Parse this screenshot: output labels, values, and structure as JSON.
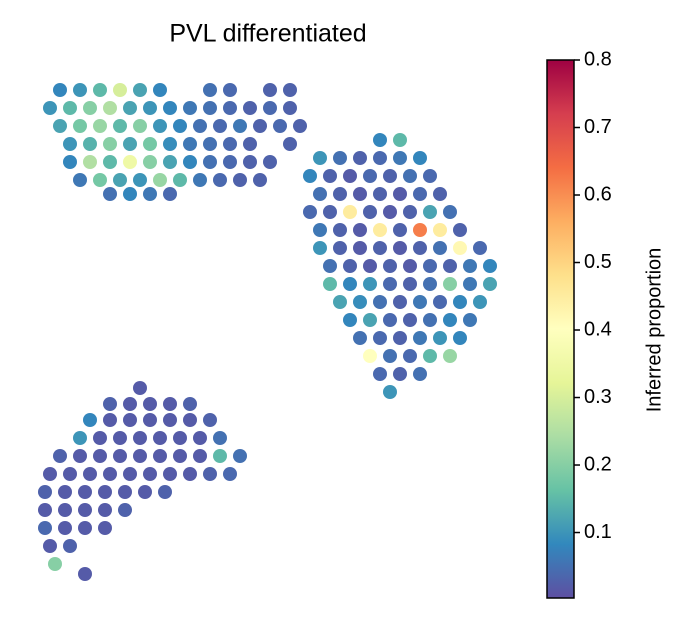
{
  "chart_data": {
    "type": "scatter",
    "title": "PVL differentiated",
    "colorbar_label": "Inferred proportion",
    "clim": [
      0.003,
      0.8
    ],
    "cticks": [
      0.1,
      0.2,
      0.3,
      0.4,
      0.5,
      0.6,
      0.7,
      0.8
    ],
    "colormap": [
      "#5e4fa2",
      "#3288bd",
      "#66c2a5",
      "#abdda4",
      "#e6f598",
      "#ffffbf",
      "#fee08b",
      "#fdae61",
      "#f46d43",
      "#d53e4f",
      "#9e0142"
    ],
    "y_inverted": true,
    "xlim": [
      30,
      510
    ],
    "ylim": [
      70,
      590
    ],
    "x": [
      60,
      80,
      100,
      120,
      140,
      160,
      210,
      230,
      270,
      290,
      50,
      70,
      90,
      110,
      130,
      150,
      170,
      190,
      210,
      230,
      250,
      270,
      290,
      60,
      80,
      100,
      120,
      140,
      160,
      180,
      200,
      220,
      240,
      260,
      280,
      300,
      70,
      90,
      110,
      130,
      150,
      170,
      190,
      210,
      230,
      250,
      290,
      70,
      90,
      110,
      130,
      150,
      170,
      190,
      210,
      230,
      250,
      270,
      80,
      100,
      120,
      140,
      160,
      180,
      200,
      220,
      240,
      260,
      110,
      130,
      150,
      170,
      380,
      400,
      320,
      340,
      360,
      380,
      400,
      420,
      310,
      330,
      350,
      370,
      390,
      410,
      430,
      320,
      340,
      360,
      380,
      400,
      420,
      440,
      310,
      330,
      350,
      370,
      390,
      410,
      430,
      450,
      320,
      340,
      360,
      380,
      400,
      420,
      440,
      460,
      320,
      340,
      360,
      380,
      400,
      420,
      440,
      460,
      480,
      330,
      350,
      370,
      390,
      410,
      430,
      450,
      470,
      490,
      330,
      350,
      370,
      390,
      410,
      430,
      450,
      470,
      490,
      340,
      360,
      380,
      400,
      420,
      440,
      460,
      480,
      350,
      370,
      390,
      410,
      430,
      450,
      470,
      360,
      380,
      400,
      420,
      440,
      460,
      370,
      390,
      410,
      430,
      450,
      380,
      400,
      420,
      390,
      140,
      110,
      130,
      150,
      170,
      190,
      90,
      110,
      130,
      150,
      170,
      190,
      210,
      80,
      100,
      120,
      140,
      160,
      180,
      200,
      220,
      60,
      80,
      100,
      120,
      140,
      160,
      180,
      200,
      220,
      240,
      50,
      70,
      90,
      110,
      130,
      150,
      170,
      190,
      210,
      230,
      45,
      65,
      85,
      105,
      125,
      145,
      165,
      45,
      65,
      85,
      105,
      125,
      45,
      65,
      85,
      105,
      50,
      70,
      55,
      85
    ],
    "y": [
      90,
      90,
      90,
      90,
      90,
      90,
      90,
      90,
      90,
      90,
      108,
      108,
      108,
      108,
      108,
      108,
      108,
      108,
      108,
      108,
      108,
      108,
      108,
      126,
      126,
      126,
      126,
      126,
      126,
      126,
      126,
      126,
      126,
      126,
      126,
      126,
      144,
      144,
      144,
      144,
      144,
      144,
      144,
      144,
      144,
      144,
      144,
      162,
      162,
      162,
      162,
      162,
      162,
      162,
      162,
      162,
      162,
      162,
      180,
      180,
      180,
      180,
      180,
      180,
      180,
      180,
      180,
      180,
      194,
      194,
      194,
      194,
      140,
      140,
      158,
      158,
      158,
      158,
      158,
      158,
      176,
      176,
      176,
      176,
      176,
      176,
      176,
      194,
      194,
      194,
      194,
      194,
      194,
      194,
      212,
      212,
      212,
      212,
      212,
      212,
      212,
      212,
      230,
      230,
      230,
      230,
      230,
      230,
      230,
      230,
      248,
      248,
      248,
      248,
      248,
      248,
      248,
      248,
      248,
      266,
      266,
      266,
      266,
      266,
      266,
      266,
      266,
      266,
      284,
      284,
      284,
      284,
      284,
      284,
      284,
      284,
      284,
      302,
      302,
      302,
      302,
      302,
      302,
      302,
      302,
      320,
      320,
      320,
      320,
      320,
      320,
      320,
      338,
      338,
      338,
      338,
      338,
      338,
      356,
      356,
      356,
      356,
      356,
      374,
      374,
      374,
      392,
      388,
      404,
      404,
      404,
      404,
      404,
      420,
      420,
      420,
      420,
      420,
      420,
      420,
      438,
      438,
      438,
      438,
      438,
      438,
      438,
      438,
      456,
      456,
      456,
      456,
      456,
      456,
      456,
      456,
      456,
      456,
      474,
      474,
      474,
      474,
      474,
      474,
      474,
      474,
      474,
      474,
      492,
      492,
      492,
      492,
      492,
      492,
      492,
      510,
      510,
      510,
      510,
      510,
      528,
      528,
      528,
      528,
      546,
      546,
      564,
      574
    ],
    "values": [
      0.08,
      0.1,
      0.15,
      0.3,
      0.12,
      0.08,
      0.05,
      0.04,
      0.03,
      0.03,
      0.1,
      0.15,
      0.2,
      0.25,
      0.12,
      0.1,
      0.08,
      0.06,
      0.05,
      0.04,
      0.03,
      0.04,
      0.03,
      0.12,
      0.18,
      0.22,
      0.15,
      0.2,
      0.1,
      0.08,
      0.05,
      0.04,
      0.06,
      0.03,
      0.04,
      0.03,
      0.1,
      0.14,
      0.2,
      0.12,
      0.18,
      0.09,
      0.06,
      0.05,
      0.04,
      0.03,
      0.03,
      0.08,
      0.25,
      0.15,
      0.35,
      0.2,
      0.12,
      0.08,
      0.05,
      0.04,
      0.03,
      0.03,
      0.06,
      0.18,
      0.12,
      0.1,
      0.22,
      0.15,
      0.06,
      0.04,
      0.03,
      0.03,
      0.05,
      0.08,
      0.06,
      0.04,
      0.08,
      0.15,
      0.1,
      0.05,
      0.03,
      0.04,
      0.06,
      0.08,
      0.08,
      0.03,
      0.02,
      0.04,
      0.03,
      0.05,
      0.04,
      0.05,
      0.03,
      0.02,
      0.03,
      0.02,
      0.04,
      0.03,
      0.04,
      0.03,
      0.45,
      0.03,
      0.02,
      0.03,
      0.12,
      0.05,
      0.06,
      0.03,
      0.02,
      0.45,
      0.03,
      0.62,
      0.45,
      0.03,
      0.1,
      0.03,
      0.02,
      0.03,
      0.02,
      0.03,
      0.05,
      0.42,
      0.04,
      0.05,
      0.03,
      0.02,
      0.03,
      0.02,
      0.04,
      0.03,
      0.06,
      0.08,
      0.15,
      0.08,
      0.1,
      0.04,
      0.03,
      0.05,
      0.2,
      0.06,
      0.12,
      0.12,
      0.09,
      0.05,
      0.03,
      0.06,
      0.04,
      0.08,
      0.1,
      0.08,
      0.12,
      0.04,
      0.03,
      0.05,
      0.08,
      0.06,
      0.05,
      0.04,
      0.03,
      0.06,
      0.1,
      0.08,
      0.4,
      0.05,
      0.04,
      0.15,
      0.22,
      0.04,
      0.03,
      0.05,
      0.1,
      0.02,
      0.03,
      0.02,
      0.02,
      0.02,
      0.03,
      0.08,
      0.02,
      0.02,
      0.02,
      0.02,
      0.02,
      0.03,
      0.1,
      0.02,
      0.02,
      0.02,
      0.02,
      0.02,
      0.02,
      0.05,
      0.03,
      0.02,
      0.02,
      0.02,
      0.02,
      0.02,
      0.02,
      0.02,
      0.15,
      0.05,
      0.02,
      0.02,
      0.02,
      0.02,
      0.02,
      0.02,
      0.02,
      0.02,
      0.03,
      0.04,
      0.03,
      0.02,
      0.02,
      0.02,
      0.02,
      0.02,
      0.03,
      0.02,
      0.02,
      0.02,
      0.02,
      0.03,
      0.04,
      0.02,
      0.02,
      0.02,
      0.02,
      0.03,
      0.2,
      0.02
    ]
  }
}
